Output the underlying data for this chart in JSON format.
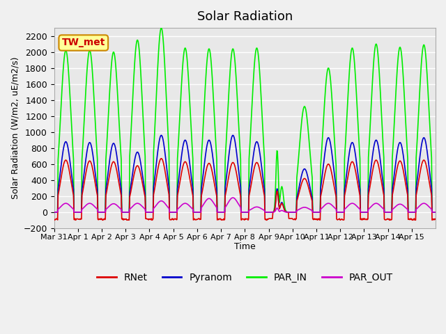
{
  "title": "Solar Radiation",
  "ylabel": "Solar Radiation (W/m2, uE/m2/s)",
  "xlabel": "Time",
  "ylim": [
    -200,
    2300
  ],
  "yticks": [
    -200,
    0,
    200,
    400,
    600,
    800,
    1000,
    1200,
    1400,
    1600,
    1800,
    2000,
    2200
  ],
  "xtick_labels": [
    "Mar 31",
    "Apr 1",
    "Apr 2",
    "Apr 3",
    "Apr 4",
    "Apr 5",
    "Apr 6",
    "Apr 7",
    "Apr 8",
    "Apr 9",
    "Apr 10",
    "Apr 11",
    "Apr 12",
    "Apr 13",
    "Apr 14",
    "Apr 15"
  ],
  "colors": {
    "RNet": "#dd0000",
    "Pyranom": "#0000cc",
    "PAR_IN": "#00ee00",
    "PAR_OUT": "#cc00cc"
  },
  "station_label": "TW_met",
  "station_label_color": "#cc0000",
  "station_box_facecolor": "#ffff99",
  "station_box_edgecolor": "#cc8800",
  "background_color": "#e8e8e8",
  "grid_color": "#ffffff",
  "num_days": 16,
  "samples_per_day": 48
}
